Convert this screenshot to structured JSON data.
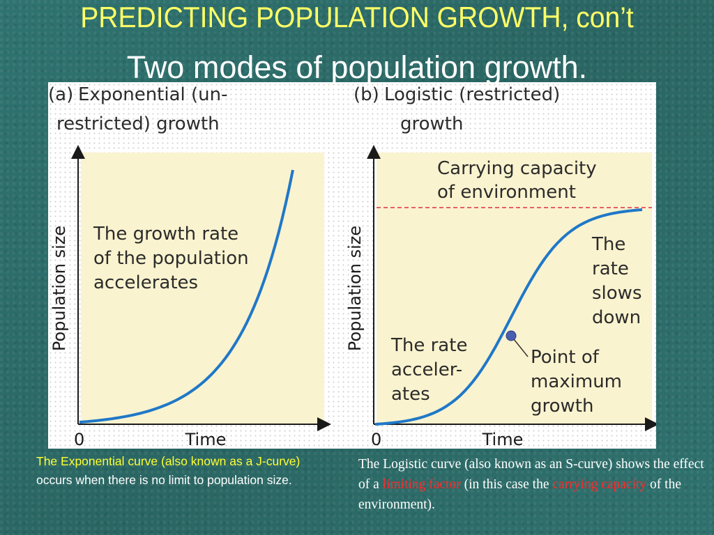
{
  "slide": {
    "title": "PREDICTING POPULATION GROWTH, con’t",
    "subtitle": "Two modes of population growth."
  },
  "colors": {
    "curve": "#1f78c8",
    "capacity_line": "#e0304a",
    "plot_bg": "#faf3cf",
    "title": "#ffff66",
    "caption_highlight_left": "#ffff33",
    "caption_highlight_right": "#ff2a2a"
  },
  "chart_data": [
    {
      "type": "line",
      "panel_label": "(a)",
      "title_lines": [
        "Exponential (un-",
        "restricted) growth"
      ],
      "xlabel": "Time",
      "ylabel": "Population size",
      "x_tick_labels": [
        "0"
      ],
      "annotation_lines": [
        "The growth rate",
        "of the population",
        "accelerates"
      ],
      "curve_shape": "exponential (J-curve)",
      "grid": false
    },
    {
      "type": "line",
      "panel_label": "(b)",
      "title_lines": [
        "Logistic (restricted)",
        "growth"
      ],
      "xlabel": "Time",
      "ylabel": "Population size",
      "x_tick_labels": [
        "0"
      ],
      "capacity_label_lines": [
        "Carrying capacity",
        "of environment"
      ],
      "annotation_lines_left": [
        "The rate",
        "acceler-",
        "ates"
      ],
      "annotation_lines_right": [
        "The",
        "rate",
        "slows",
        "down"
      ],
      "inflection_label_lines": [
        "Point of",
        "maximum",
        "growth"
      ],
      "curve_shape": "logistic (S-curve)",
      "grid": false
    }
  ],
  "captions": {
    "left": {
      "highlight": "The Exponential curve (also known as a J-curve)",
      "rest": " occurs when there is no limit to population size."
    },
    "right": {
      "part1": "The Logistic curve (also known as an S-curve) shows the effect of a ",
      "limiting_factor": "limiting factor",
      "part2": " (in this case the ",
      "carrying_capacity": "carrying capacity",
      "part3": " of the environment)."
    }
  }
}
